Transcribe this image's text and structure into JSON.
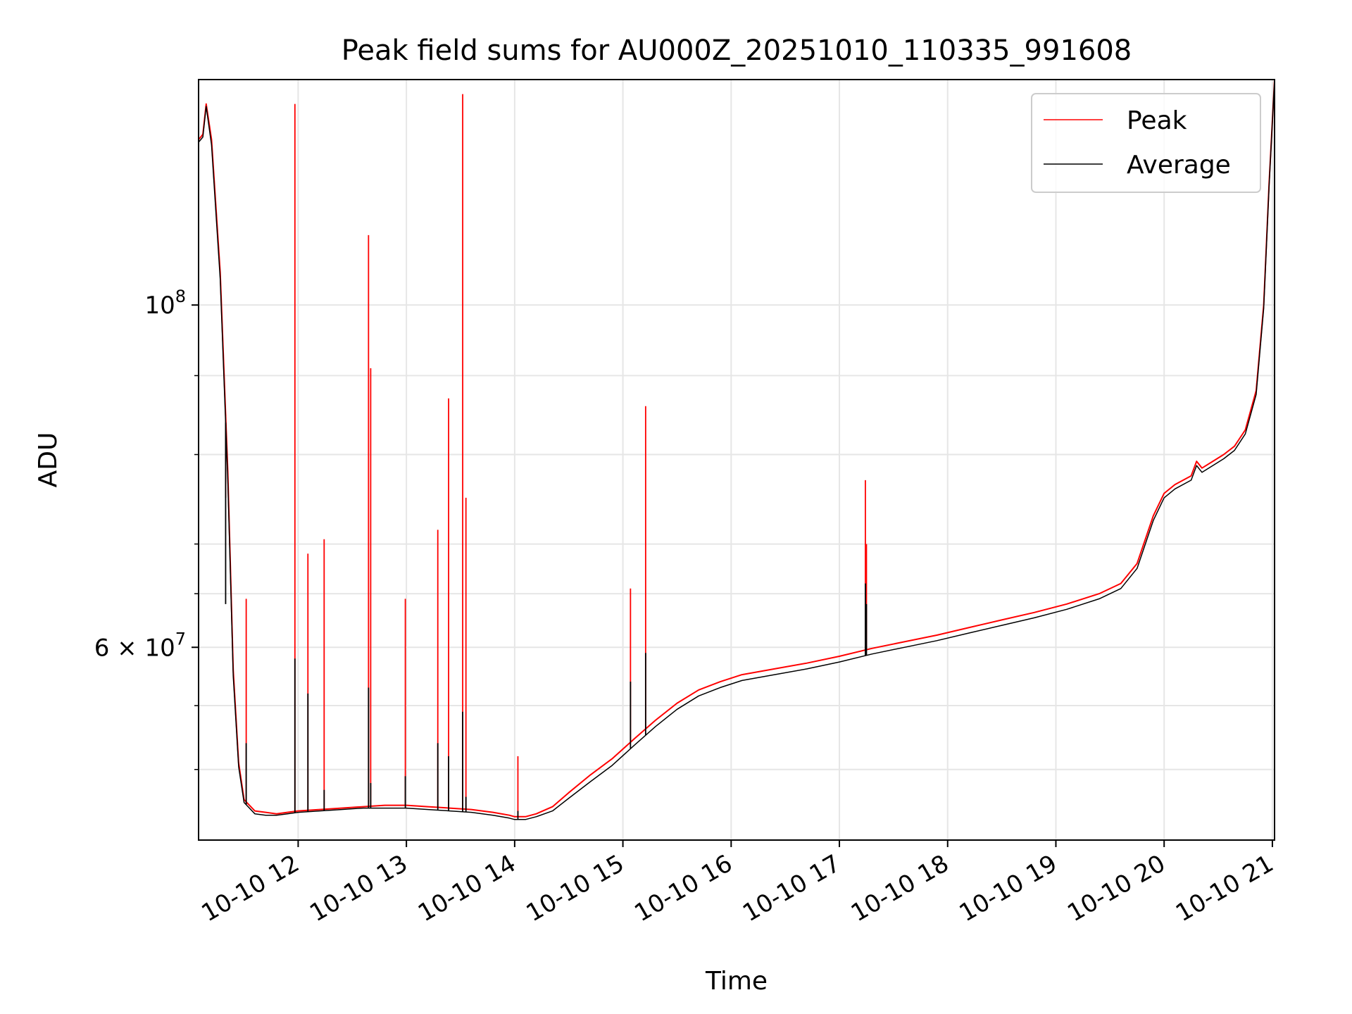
{
  "chart_data": {
    "type": "line",
    "title": "Peak field sums for AU000Z_20251010_110335_991608",
    "xlabel": "Time",
    "ylabel": "ADU",
    "yscale": "log",
    "ylim": [
      45000000,
      140000000
    ],
    "xlim_hours": [
      11.08,
      21.02
    ],
    "grid": true,
    "legend_position": "top-right",
    "x_ticks": [
      {
        "hour": 12,
        "label": "10-10 12"
      },
      {
        "hour": 13,
        "label": "10-10 13"
      },
      {
        "hour": 14,
        "label": "10-10 14"
      },
      {
        "hour": 15,
        "label": "10-10 15"
      },
      {
        "hour": 16,
        "label": "10-10 16"
      },
      {
        "hour": 17,
        "label": "10-10 17"
      },
      {
        "hour": 18,
        "label": "10-10 18"
      },
      {
        "hour": 19,
        "label": "10-10 19"
      },
      {
        "hour": 20,
        "label": "10-10 20"
      },
      {
        "hour": 21,
        "label": "10-10 21"
      }
    ],
    "y_ticks_major": [
      {
        "value": 100000000,
        "base": "10",
        "exp": "8"
      },
      {
        "value": 60000000,
        "base": "6 × 10",
        "exp": "7"
      }
    ],
    "y_ticks_minor": [
      50000000,
      55000000,
      65000000,
      70000000,
      80000000,
      90000000
    ],
    "series": [
      {
        "name": "Peak",
        "color": "#ff0000",
        "x_hours": [
          11.08,
          11.12,
          11.15,
          11.2,
          11.28,
          11.35,
          11.4,
          11.45,
          11.5,
          11.6,
          11.7,
          11.8,
          11.9,
          12.0,
          12.2,
          12.4,
          12.6,
          12.8,
          13.0,
          13.2,
          13.4,
          13.6,
          13.8,
          13.95,
          14.0,
          14.1,
          14.2,
          14.35,
          14.5,
          14.7,
          14.9,
          15.1,
          15.3,
          15.5,
          15.7,
          15.9,
          16.1,
          16.4,
          16.7,
          17.0,
          17.3,
          17.6,
          17.9,
          18.2,
          18.5,
          18.8,
          19.1,
          19.4,
          19.6,
          19.75,
          19.9,
          20.0,
          20.1,
          20.25,
          20.3,
          20.35,
          20.45,
          20.55,
          20.65,
          20.75,
          20.85,
          20.92,
          20.97,
          21.02
        ],
        "values": [
          128000000,
          129000000,
          135000000,
          128000000,
          105000000,
          78000000,
          58000000,
          50500000,
          47800000,
          47000000,
          46900000,
          46800000,
          46900000,
          47000000,
          47100000,
          47200000,
          47300000,
          47400000,
          47400000,
          47300000,
          47200000,
          47100000,
          46900000,
          46700000,
          46600000,
          46600000,
          46800000,
          47300000,
          48300000,
          49600000,
          50800000,
          52300000,
          53800000,
          55200000,
          56300000,
          57000000,
          57600000,
          58100000,
          58600000,
          59200000,
          59900000,
          60500000,
          61100000,
          61800000,
          62500000,
          63200000,
          64000000,
          65000000,
          66000000,
          68000000,
          73000000,
          75500000,
          76500000,
          77500000,
          79200000,
          78400000,
          79200000,
          80000000,
          81000000,
          83000000,
          88000000,
          100000000,
          120000000,
          140000000
        ],
        "spikes": [
          {
            "hour": 11.33,
            "value": 75000000
          },
          {
            "hour": 11.52,
            "value": 64500000
          },
          {
            "hour": 11.97,
            "value": 135000000
          },
          {
            "hour": 12.09,
            "value": 69000000
          },
          {
            "hour": 12.24,
            "value": 70500000
          },
          {
            "hour": 12.65,
            "value": 111000000
          },
          {
            "hour": 12.67,
            "value": 91000000
          },
          {
            "hour": 12.99,
            "value": 64500000
          },
          {
            "hour": 13.29,
            "value": 71500000
          },
          {
            "hour": 13.39,
            "value": 87000000
          },
          {
            "hour": 13.52,
            "value": 137000000
          },
          {
            "hour": 13.55,
            "value": 75000000
          },
          {
            "hour": 14.03,
            "value": 51000000
          },
          {
            "hour": 15.07,
            "value": 65500000
          },
          {
            "hour": 15.21,
            "value": 86000000
          },
          {
            "hour": 17.24,
            "value": 77000000
          },
          {
            "hour": 17.25,
            "value": 70000000
          }
        ]
      },
      {
        "name": "Average",
        "color": "#000000",
        "x_hours": [
          11.08,
          11.12,
          11.15,
          11.2,
          11.28,
          11.35,
          11.4,
          11.45,
          11.5,
          11.6,
          11.7,
          11.8,
          11.9,
          12.0,
          12.2,
          12.4,
          12.6,
          12.8,
          13.0,
          13.2,
          13.4,
          13.6,
          13.8,
          13.95,
          14.0,
          14.1,
          14.2,
          14.35,
          14.5,
          14.7,
          14.9,
          15.1,
          15.3,
          15.5,
          15.7,
          15.9,
          16.1,
          16.4,
          16.7,
          17.0,
          17.3,
          17.6,
          17.9,
          18.2,
          18.5,
          18.8,
          19.1,
          19.4,
          19.6,
          19.75,
          19.9,
          20.0,
          20.1,
          20.25,
          20.3,
          20.35,
          20.45,
          20.55,
          20.65,
          20.75,
          20.85,
          20.92,
          20.97,
          21.02
        ],
        "values": [
          127500000,
          128500000,
          134500000,
          127000000,
          104000000,
          77000000,
          57500000,
          50200000,
          47600000,
          46800000,
          46700000,
          46700000,
          46800000,
          46900000,
          47000000,
          47100000,
          47200000,
          47200000,
          47200000,
          47100000,
          47000000,
          46900000,
          46700000,
          46500000,
          46400000,
          46400000,
          46600000,
          47000000,
          47900000,
          49100000,
          50300000,
          51800000,
          53300000,
          54700000,
          55800000,
          56500000,
          57100000,
          57600000,
          58100000,
          58700000,
          59400000,
          60000000,
          60600000,
          61300000,
          62000000,
          62700000,
          63500000,
          64500000,
          65500000,
          67500000,
          72500000,
          75000000,
          76000000,
          77000000,
          78700000,
          77900000,
          78700000,
          79500000,
          80500000,
          82500000,
          87500000,
          99500000,
          119500000,
          140000000
        ],
        "spikes": [
          {
            "hour": 11.33,
            "value": 64000000
          },
          {
            "hour": 11.52,
            "value": 52000000
          },
          {
            "hour": 11.97,
            "value": 59000000
          },
          {
            "hour": 12.09,
            "value": 56000000
          },
          {
            "hour": 12.24,
            "value": 48500000
          },
          {
            "hour": 12.65,
            "value": 56500000
          },
          {
            "hour": 12.67,
            "value": 49000000
          },
          {
            "hour": 12.99,
            "value": 49500000
          },
          {
            "hour": 13.29,
            "value": 52000000
          },
          {
            "hour": 13.39,
            "value": 51000000
          },
          {
            "hour": 13.52,
            "value": 54500000
          },
          {
            "hour": 13.55,
            "value": 48000000
          },
          {
            "hour": 14.03,
            "value": 47000000
          },
          {
            "hour": 15.07,
            "value": 57000000
          },
          {
            "hour": 15.21,
            "value": 59500000
          },
          {
            "hour": 17.24,
            "value": 66000000
          },
          {
            "hour": 17.25,
            "value": 64000000
          }
        ]
      }
    ]
  }
}
